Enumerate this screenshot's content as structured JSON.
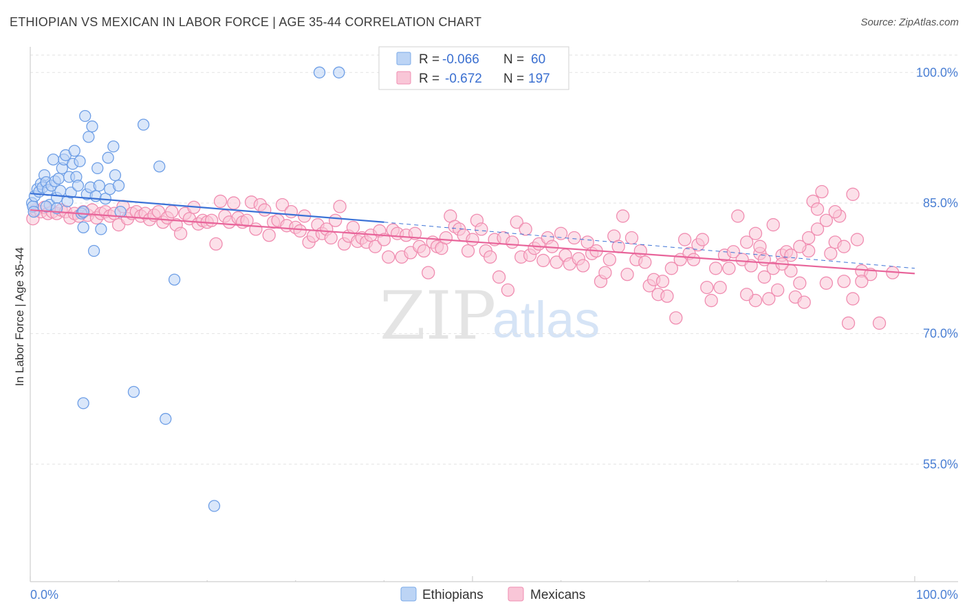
{
  "title": "ETHIOPIAN VS MEXICAN IN LABOR FORCE | AGE 35-44 CORRELATION CHART",
  "source": "Source: ZipAtlas.com",
  "watermark": {
    "zip": "ZIP",
    "atlas": "atlas"
  },
  "legend": {
    "rows": [
      {
        "r_label": "R =",
        "r_value": "-0.066",
        "n_label": "N =",
        "n_value": "60",
        "color": "#7aaae8",
        "fill": "#bcd4f5"
      },
      {
        "r_label": "R =",
        "r_value": "-0.672",
        "n_label": "N =",
        "n_value": "197",
        "color": "#f08cb0",
        "fill": "#f9c6d7"
      }
    ]
  },
  "bottom_legend": [
    {
      "label": "Ethiopians",
      "color": "#7aaae8",
      "fill": "#bcd4f5"
    },
    {
      "label": "Mexicans",
      "color": "#f08cb0",
      "fill": "#f9c6d7"
    }
  ],
  "chart_data": {
    "type": "scatter",
    "ylabel": "In Labor Force | Age 35-44",
    "xlim": [
      0,
      100
    ],
    "ylim": [
      41.5,
      102
    ],
    "y_ticks": [
      {
        "value": 100,
        "label": "100.0%"
      },
      {
        "value": 85,
        "label": "85.0%"
      },
      {
        "value": 70,
        "label": "70.0%"
      },
      {
        "value": 55,
        "label": "55.0%"
      }
    ],
    "x_tick_labels": {
      "min": "0.0%",
      "max": "100.0%"
    },
    "grid": true,
    "series": [
      {
        "name": "Ethiopians",
        "stroke": "#6d9ee6",
        "fill": "#bcd4f5",
        "trend": {
          "x0": 0,
          "y0": 86.1,
          "x1": 40,
          "y1": 82.8,
          "dashed_to_x": 100,
          "dashed_to_y": 77.5,
          "color": "#3b72d6"
        },
        "points": [
          [
            0.2,
            85.0
          ],
          [
            0.3,
            84.6
          ],
          [
            0.5,
            85.8
          ],
          [
            0.8,
            86.6
          ],
          [
            1.0,
            86.3
          ],
          [
            1.2,
            87.2
          ],
          [
            1.4,
            86.8
          ],
          [
            1.6,
            88.2
          ],
          [
            1.8,
            87.4
          ],
          [
            2.0,
            86.5
          ],
          [
            2.2,
            84.8
          ],
          [
            2.4,
            87.0
          ],
          [
            2.6,
            90.0
          ],
          [
            2.8,
            87.5
          ],
          [
            3.0,
            85.6
          ],
          [
            3.2,
            87.8
          ],
          [
            3.4,
            86.4
          ],
          [
            3.6,
            89.0
          ],
          [
            3.8,
            90.0
          ],
          [
            4.0,
            90.5
          ],
          [
            4.2,
            85.2
          ],
          [
            4.4,
            88.0
          ],
          [
            4.6,
            86.2
          ],
          [
            4.8,
            89.5
          ],
          [
            5.0,
            91.0
          ],
          [
            5.2,
            88.0
          ],
          [
            5.4,
            87.0
          ],
          [
            5.6,
            89.8
          ],
          [
            5.8,
            83.8
          ],
          [
            6.0,
            84.0
          ],
          [
            6.2,
            95.0
          ],
          [
            6.4,
            86.0
          ],
          [
            6.6,
            92.6
          ],
          [
            6.8,
            86.8
          ],
          [
            7.0,
            93.8
          ],
          [
            7.2,
            79.5
          ],
          [
            7.4,
            85.8
          ],
          [
            7.6,
            89.0
          ],
          [
            7.8,
            87.0
          ],
          [
            8.0,
            82.0
          ],
          [
            8.5,
            85.5
          ],
          [
            8.8,
            90.2
          ],
          [
            9.0,
            86.6
          ],
          [
            9.4,
            91.5
          ],
          [
            9.6,
            88.2
          ],
          [
            10.0,
            87.0
          ],
          [
            10.2,
            84.0
          ],
          [
            12.8,
            94.0
          ],
          [
            14.6,
            89.2
          ],
          [
            6.0,
            82.2
          ],
          [
            16.3,
            76.2
          ],
          [
            34.9,
            100.0
          ],
          [
            32.7,
            100.0
          ],
          [
            20.8,
            50.2
          ],
          [
            6.0,
            62.0
          ],
          [
            11.7,
            63.3
          ],
          [
            15.3,
            60.2
          ],
          [
            0.4,
            84.0
          ],
          [
            1.8,
            84.6
          ],
          [
            3.0,
            84.4
          ]
        ]
      },
      {
        "name": "Mexicans",
        "stroke": "#f08cb0",
        "fill": "#f9c6d7",
        "trend": {
          "x0": 0,
          "y0": 84.2,
          "x1": 100,
          "y1": 76.9,
          "color": "#e8649a"
        },
        "points": [
          [
            0.3,
            83.2
          ],
          [
            0.6,
            84.2
          ],
          [
            1.2,
            84.0
          ],
          [
            1.6,
            84.5
          ],
          [
            2.0,
            83.8
          ],
          [
            2.5,
            84.0
          ],
          [
            3.0,
            83.8
          ],
          [
            3.5,
            84.2
          ],
          [
            4.0,
            84.0
          ],
          [
            4.5,
            83.3
          ],
          [
            5.0,
            83.8
          ],
          [
            5.5,
            83.5
          ],
          [
            6.0,
            84.0
          ],
          [
            6.5,
            83.6
          ],
          [
            7.0,
            84.2
          ],
          [
            7.5,
            83.3
          ],
          [
            8.0,
            83.8
          ],
          [
            8.5,
            84.0
          ],
          [
            9.0,
            83.5
          ],
          [
            9.5,
            83.8
          ],
          [
            10.0,
            82.5
          ],
          [
            10.5,
            84.6
          ],
          [
            11.0,
            83.2
          ],
          [
            11.5,
            83.8
          ],
          [
            12.0,
            84.0
          ],
          [
            12.5,
            83.5
          ],
          [
            13.0,
            83.8
          ],
          [
            13.5,
            83.1
          ],
          [
            14.0,
            83.6
          ],
          [
            14.5,
            84.0
          ],
          [
            15.0,
            82.8
          ],
          [
            15.5,
            83.3
          ],
          [
            16.0,
            84.0
          ],
          [
            16.5,
            82.5
          ],
          [
            17.0,
            81.5
          ],
          [
            17.5,
            83.8
          ],
          [
            18.0,
            83.2
          ],
          [
            18.5,
            84.5
          ],
          [
            19.0,
            82.6
          ],
          [
            19.5,
            83.0
          ],
          [
            20.0,
            82.8
          ],
          [
            20.5,
            83.0
          ],
          [
            21.0,
            80.3
          ],
          [
            21.5,
            85.2
          ],
          [
            22.0,
            83.5
          ],
          [
            22.5,
            82.8
          ],
          [
            23.0,
            85.0
          ],
          [
            23.5,
            83.3
          ],
          [
            24.0,
            82.8
          ],
          [
            24.5,
            83.0
          ],
          [
            25.0,
            85.1
          ],
          [
            25.5,
            82.0
          ],
          [
            26.0,
            84.8
          ],
          [
            26.5,
            84.2
          ],
          [
            27.0,
            81.3
          ],
          [
            27.5,
            82.8
          ],
          [
            28.0,
            83.0
          ],
          [
            28.5,
            84.8
          ],
          [
            29.0,
            82.4
          ],
          [
            29.5,
            84.0
          ],
          [
            30.0,
            82.2
          ],
          [
            30.5,
            81.8
          ],
          [
            31.0,
            83.5
          ],
          [
            31.5,
            80.5
          ],
          [
            32.0,
            81.2
          ],
          [
            32.5,
            82.5
          ],
          [
            33.0,
            81.5
          ],
          [
            33.5,
            82.0
          ],
          [
            34.0,
            81.0
          ],
          [
            34.5,
            83.0
          ],
          [
            35.0,
            84.6
          ],
          [
            35.5,
            80.3
          ],
          [
            36.0,
            81.2
          ],
          [
            36.5,
            82.2
          ],
          [
            37.0,
            80.6
          ],
          [
            37.5,
            81.0
          ],
          [
            38.0,
            80.5
          ],
          [
            38.5,
            81.3
          ],
          [
            39.0,
            80.0
          ],
          [
            39.5,
            81.8
          ],
          [
            40.0,
            80.8
          ],
          [
            40.5,
            78.8
          ],
          [
            41.0,
            81.9
          ],
          [
            41.5,
            81.5
          ],
          [
            42.0,
            78.8
          ],
          [
            42.5,
            81.3
          ],
          [
            43.0,
            79.3
          ],
          [
            43.5,
            81.5
          ],
          [
            44.0,
            80.0
          ],
          [
            44.5,
            79.5
          ],
          [
            45.0,
            77.0
          ],
          [
            45.5,
            80.5
          ],
          [
            46.0,
            80.0
          ],
          [
            46.5,
            79.8
          ],
          [
            47.0,
            81.0
          ],
          [
            47.5,
            83.5
          ],
          [
            48.0,
            82.3
          ],
          [
            48.5,
            82.0
          ],
          [
            49.0,
            81.3
          ],
          [
            49.5,
            79.5
          ],
          [
            50.0,
            80.8
          ],
          [
            50.5,
            83.0
          ],
          [
            51.0,
            82.0
          ],
          [
            51.5,
            79.5
          ],
          [
            52.0,
            78.8
          ],
          [
            52.5,
            80.8
          ],
          [
            53.0,
            76.5
          ],
          [
            53.5,
            81.0
          ],
          [
            54.0,
            75.0
          ],
          [
            54.5,
            80.5
          ],
          [
            55.0,
            82.8
          ],
          [
            55.5,
            78.8
          ],
          [
            56.0,
            82.0
          ],
          [
            56.5,
            79.0
          ],
          [
            57.0,
            79.8
          ],
          [
            57.5,
            80.3
          ],
          [
            58.0,
            78.4
          ],
          [
            58.5,
            81.0
          ],
          [
            59.0,
            80.0
          ],
          [
            59.5,
            78.2
          ],
          [
            60.0,
            81.5
          ],
          [
            60.5,
            79.0
          ],
          [
            61.0,
            78.0
          ],
          [
            61.5,
            81.0
          ],
          [
            62.0,
            78.6
          ],
          [
            62.5,
            77.8
          ],
          [
            63.0,
            80.5
          ],
          [
            63.5,
            79.2
          ],
          [
            64.0,
            79.5
          ],
          [
            64.5,
            76.0
          ],
          [
            65.0,
            77.0
          ],
          [
            65.5,
            78.5
          ],
          [
            66.0,
            81.2
          ],
          [
            66.5,
            80.0
          ],
          [
            67.0,
            83.5
          ],
          [
            67.5,
            76.8
          ],
          [
            68.0,
            81.0
          ],
          [
            68.5,
            78.5
          ],
          [
            69.0,
            79.5
          ],
          [
            69.5,
            78.2
          ],
          [
            70.0,
            75.5
          ],
          [
            70.5,
            76.2
          ],
          [
            71.0,
            74.5
          ],
          [
            71.5,
            76.0
          ],
          [
            72.0,
            74.3
          ],
          [
            72.5,
            77.5
          ],
          [
            73.0,
            71.8
          ],
          [
            73.5,
            78.5
          ],
          [
            74.0,
            80.8
          ],
          [
            74.5,
            79.2
          ],
          [
            75.0,
            78.5
          ],
          [
            75.5,
            80.2
          ],
          [
            76.0,
            80.8
          ],
          [
            76.5,
            75.3
          ],
          [
            77.0,
            73.8
          ],
          [
            77.5,
            77.5
          ],
          [
            78.0,
            75.3
          ],
          [
            78.5,
            79.0
          ],
          [
            79.0,
            77.5
          ],
          [
            79.5,
            79.4
          ],
          [
            80.0,
            83.5
          ],
          [
            80.5,
            78.5
          ],
          [
            81.0,
            80.5
          ],
          [
            81.5,
            77.8
          ],
          [
            82.0,
            73.8
          ],
          [
            82.5,
            79.2
          ],
          [
            83.0,
            78.5
          ],
          [
            83.5,
            74.0
          ],
          [
            84.0,
            77.5
          ],
          [
            84.5,
            75.0
          ],
          [
            85.0,
            79.0
          ],
          [
            85.5,
            79.4
          ],
          [
            86.0,
            77.2
          ],
          [
            86.5,
            74.2
          ],
          [
            87.0,
            75.8
          ],
          [
            87.5,
            73.6
          ],
          [
            88.0,
            79.5
          ],
          [
            88.5,
            85.2
          ],
          [
            89.0,
            84.3
          ],
          [
            89.5,
            86.3
          ],
          [
            90.0,
            75.8
          ],
          [
            90.5,
            79.2
          ],
          [
            91.0,
            80.5
          ],
          [
            91.5,
            83.5
          ],
          [
            92.0,
            76.0
          ],
          [
            92.5,
            71.2
          ],
          [
            93.0,
            86.0
          ],
          [
            93.5,
            80.8
          ],
          [
            94.0,
            77.2
          ],
          [
            82.5,
            80.0
          ],
          [
            97.5,
            77.0
          ],
          [
            96.0,
            71.2
          ],
          [
            95.0,
            76.8
          ],
          [
            94.0,
            76.0
          ],
          [
            93.0,
            74.0
          ],
          [
            92.0,
            80.0
          ],
          [
            91.0,
            84.0
          ],
          [
            90.0,
            83.0
          ],
          [
            89.0,
            82.0
          ],
          [
            88.0,
            81.0
          ],
          [
            87.0,
            80.0
          ],
          [
            86.0,
            79.0
          ],
          [
            85.0,
            78.0
          ],
          [
            84.0,
            82.5
          ],
          [
            83.0,
            76.5
          ],
          [
            82.0,
            81.5
          ],
          [
            81.0,
            74.5
          ]
        ]
      }
    ]
  }
}
